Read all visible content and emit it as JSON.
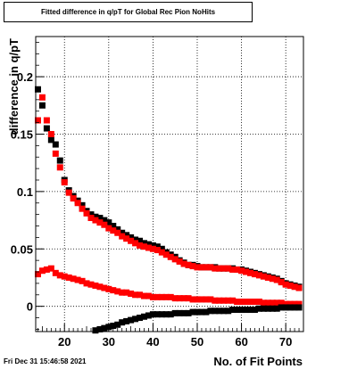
{
  "chart_data": {
    "type": "scatter",
    "title": "Fitted difference in q/pT for Global Rec Pion NoHits",
    "xlabel": "No. of Fit Points",
    "ylabel": "difference in q/pT",
    "xlim": [
      13.5,
      74.0
    ],
    "ylim": [
      -0.022,
      0.235
    ],
    "x_ticks": [
      "20",
      "30",
      "40",
      "50",
      "60",
      "70"
    ],
    "y_ticks": [
      "0",
      "0.05",
      "0.1",
      "0.15",
      "0.2"
    ],
    "grid": true,
    "series": [
      {
        "color": "#000000",
        "marker": "square",
        "x": [
          14,
          15,
          16,
          17,
          18,
          19,
          20,
          21,
          22,
          23,
          24,
          25,
          26,
          27,
          28,
          29,
          30,
          31,
          32,
          33,
          34,
          35,
          36,
          37,
          38,
          39,
          40,
          41,
          42,
          43,
          44,
          45,
          46,
          47,
          48,
          49,
          50,
          51,
          52,
          53,
          54,
          55,
          56,
          57,
          58,
          59,
          60,
          61,
          62,
          63,
          64,
          65,
          66,
          67,
          68,
          69,
          70,
          71,
          72,
          73
        ],
        "y": [
          0.189,
          0.175,
          0.155,
          0.145,
          0.141,
          0.127,
          0.11,
          0.101,
          0.096,
          0.092,
          0.088,
          0.083,
          0.08,
          0.078,
          0.077,
          0.075,
          0.073,
          0.07,
          0.067,
          0.064,
          0.062,
          0.06,
          0.058,
          0.057,
          0.055,
          0.054,
          0.053,
          0.052,
          0.05,
          0.047,
          0.045,
          0.043,
          0.04,
          0.038,
          0.036,
          0.036,
          0.035,
          0.034,
          0.034,
          0.034,
          0.034,
          0.033,
          0.033,
          0.033,
          0.033,
          0.032,
          0.032,
          0.031,
          0.03,
          0.029,
          0.028,
          0.027,
          0.026,
          0.025,
          0.024,
          0.022,
          0.02,
          0.019,
          0.018,
          0.017
        ]
      },
      {
        "color": "#ff0000",
        "marker": "square",
        "x": [
          14,
          15,
          16,
          17,
          18,
          19,
          20,
          21,
          22,
          23,
          24,
          25,
          26,
          27,
          28,
          29,
          30,
          31,
          32,
          33,
          34,
          35,
          36,
          37,
          38,
          39,
          40,
          41,
          42,
          43,
          44,
          45,
          46,
          47,
          48,
          49,
          50,
          51,
          52,
          53,
          54,
          55,
          56,
          57,
          58,
          59,
          60,
          61,
          62,
          63,
          64,
          65,
          66,
          67,
          68,
          69,
          70,
          71,
          72,
          73
        ],
        "y": [
          0.162,
          0.182,
          0.162,
          0.15,
          0.133,
          0.121,
          0.108,
          0.099,
          0.094,
          0.09,
          0.085,
          0.081,
          0.077,
          0.075,
          0.073,
          0.071,
          0.068,
          0.066,
          0.064,
          0.061,
          0.059,
          0.057,
          0.055,
          0.053,
          0.052,
          0.051,
          0.05,
          0.049,
          0.047,
          0.045,
          0.043,
          0.041,
          0.039,
          0.037,
          0.036,
          0.035,
          0.034,
          0.034,
          0.034,
          0.034,
          0.033,
          0.033,
          0.033,
          0.033,
          0.032,
          0.032,
          0.031,
          0.03,
          0.029,
          0.028,
          0.027,
          0.026,
          0.025,
          0.024,
          0.023,
          0.021,
          0.019,
          0.018,
          0.017,
          0.016
        ]
      },
      {
        "color": "#ff0000",
        "marker": "square",
        "x": [
          14,
          15,
          16,
          17,
          18,
          19,
          20,
          21,
          22,
          23,
          24,
          25,
          26,
          27,
          28,
          29,
          30,
          31,
          32,
          33,
          34,
          35,
          36,
          37,
          38,
          39,
          40,
          41,
          42,
          43,
          44,
          45,
          46,
          47,
          48,
          49,
          50,
          51,
          52,
          53,
          54,
          55,
          56,
          57,
          58,
          59,
          60,
          61,
          62,
          63,
          64,
          65,
          66,
          67,
          68,
          69,
          70,
          71,
          72,
          73
        ],
        "y": [
          0.028,
          0.031,
          0.032,
          0.033,
          0.029,
          0.027,
          0.026,
          0.025,
          0.024,
          0.023,
          0.022,
          0.02,
          0.019,
          0.018,
          0.017,
          0.016,
          0.015,
          0.014,
          0.013,
          0.012,
          0.012,
          0.011,
          0.01,
          0.01,
          0.009,
          0.009,
          0.008,
          0.008,
          0.008,
          0.008,
          0.008,
          0.007,
          0.007,
          0.007,
          0.007,
          0.006,
          0.006,
          0.006,
          0.006,
          0.006,
          0.005,
          0.005,
          0.005,
          0.005,
          0.005,
          0.004,
          0.004,
          0.004,
          0.004,
          0.004,
          0.004,
          0.003,
          0.003,
          0.003,
          0.003,
          0.003,
          0.002,
          0.002,
          0.002,
          0.002
        ]
      },
      {
        "color": "#000000",
        "marker": "square",
        "x": [
          27,
          28,
          29,
          30,
          31,
          32,
          33,
          34,
          35,
          36,
          37,
          38,
          39,
          40,
          41,
          42,
          43,
          44,
          45,
          46,
          47,
          48,
          49,
          50,
          51,
          52,
          53,
          54,
          55,
          56,
          57,
          58,
          59,
          60,
          61,
          62,
          63,
          64,
          65,
          66,
          67,
          68,
          69,
          70,
          71,
          72,
          73
        ],
        "y": [
          -0.021,
          -0.02,
          -0.019,
          -0.018,
          -0.017,
          -0.016,
          -0.014,
          -0.013,
          -0.012,
          -0.011,
          -0.01,
          -0.009,
          -0.008,
          -0.007,
          -0.007,
          -0.007,
          -0.007,
          -0.007,
          -0.006,
          -0.006,
          -0.006,
          -0.006,
          -0.005,
          -0.005,
          -0.005,
          -0.005,
          -0.004,
          -0.004,
          -0.004,
          -0.004,
          -0.004,
          -0.003,
          -0.003,
          -0.003,
          -0.003,
          -0.003,
          -0.003,
          -0.002,
          -0.002,
          -0.002,
          -0.002,
          -0.002,
          -0.001,
          -0.001,
          -0.001,
          -0.001,
          -0.001
        ]
      }
    ]
  },
  "footer": {
    "date": "Fri Dec 31 15:46:58 2021"
  }
}
